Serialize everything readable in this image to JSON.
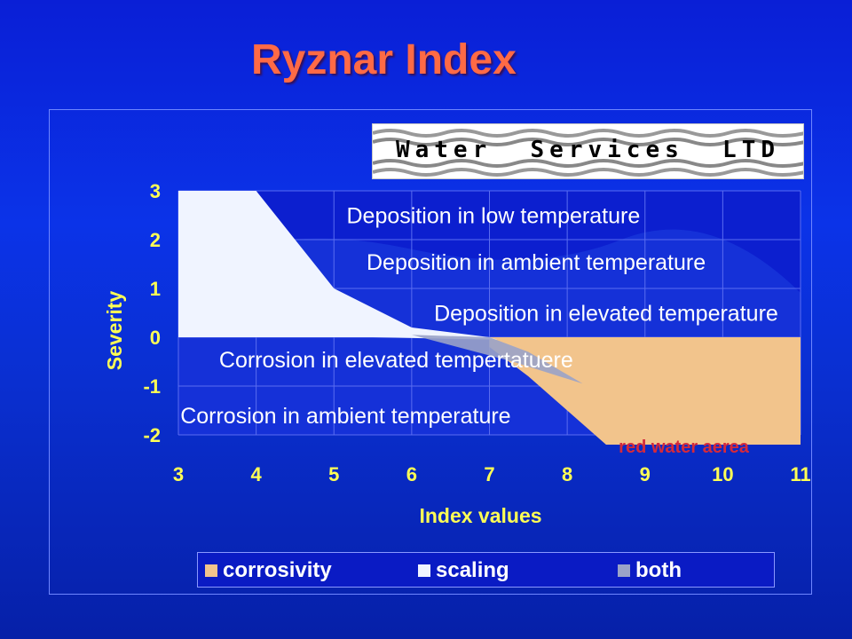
{
  "title": "Ryznar Index",
  "logo": {
    "text": "Water  Services  LTD"
  },
  "chart_data": {
    "type": "area",
    "xlabel": "Index values",
    "ylabel": "Severity",
    "xlim": [
      3,
      11
    ],
    "ylim": [
      -2,
      3
    ],
    "x_ticks": [
      "3",
      "4",
      "5",
      "6",
      "7",
      "8",
      "9",
      "10",
      "11"
    ],
    "y_ticks": [
      "3",
      "2",
      "1",
      "0",
      "-1",
      "-2"
    ],
    "grid": true,
    "legend_position": "bottom",
    "series": [
      {
        "name": "corrosivity",
        "color": "#f2c48c",
        "points": [
          [
            7,
            0
          ],
          [
            11,
            0
          ],
          [
            11,
            -2.2
          ],
          [
            8.5,
            -2.2
          ],
          [
            7.5,
            -0.8
          ],
          [
            7,
            -0.2
          ]
        ]
      },
      {
        "name": "scaling",
        "color": "#f0f4ff",
        "points": [
          [
            3,
            3
          ],
          [
            4,
            3
          ],
          [
            5,
            1
          ],
          [
            6,
            0.2
          ],
          [
            7,
            0
          ],
          [
            7.1,
            -0.05
          ],
          [
            5.5,
            0
          ],
          [
            3,
            0
          ]
        ]
      },
      {
        "name": "both",
        "color": "#9aa3c8",
        "points": [
          [
            6,
            0.05
          ],
          [
            7,
            0
          ],
          [
            7.5,
            -0.3
          ],
          [
            8.2,
            -0.95
          ],
          [
            7.3,
            -0.5
          ]
        ]
      }
    ],
    "annotations": [
      {
        "text": "Deposition in low temperature",
        "x": 7.05,
        "y": 2.5,
        "color": "#ffffff"
      },
      {
        "text": "Deposition in ambient temperature",
        "x": 7.6,
        "y": 1.55,
        "color": "#ffffff"
      },
      {
        "text": "Deposition in elevated temperature",
        "x": 8.5,
        "y": 0.5,
        "color": "#ffffff"
      },
      {
        "text": "Corrosion in elevated tempertatuere",
        "x": 5.8,
        "y": -0.45,
        "color": "#ffffff"
      },
      {
        "text": "Corrosion in ambient temperature",
        "x": 5.15,
        "y": -1.6,
        "color": "#ffffff"
      },
      {
        "text": "red water aerea",
        "x": 9.5,
        "y": -2.2,
        "color": "#d42a3c"
      }
    ]
  }
}
